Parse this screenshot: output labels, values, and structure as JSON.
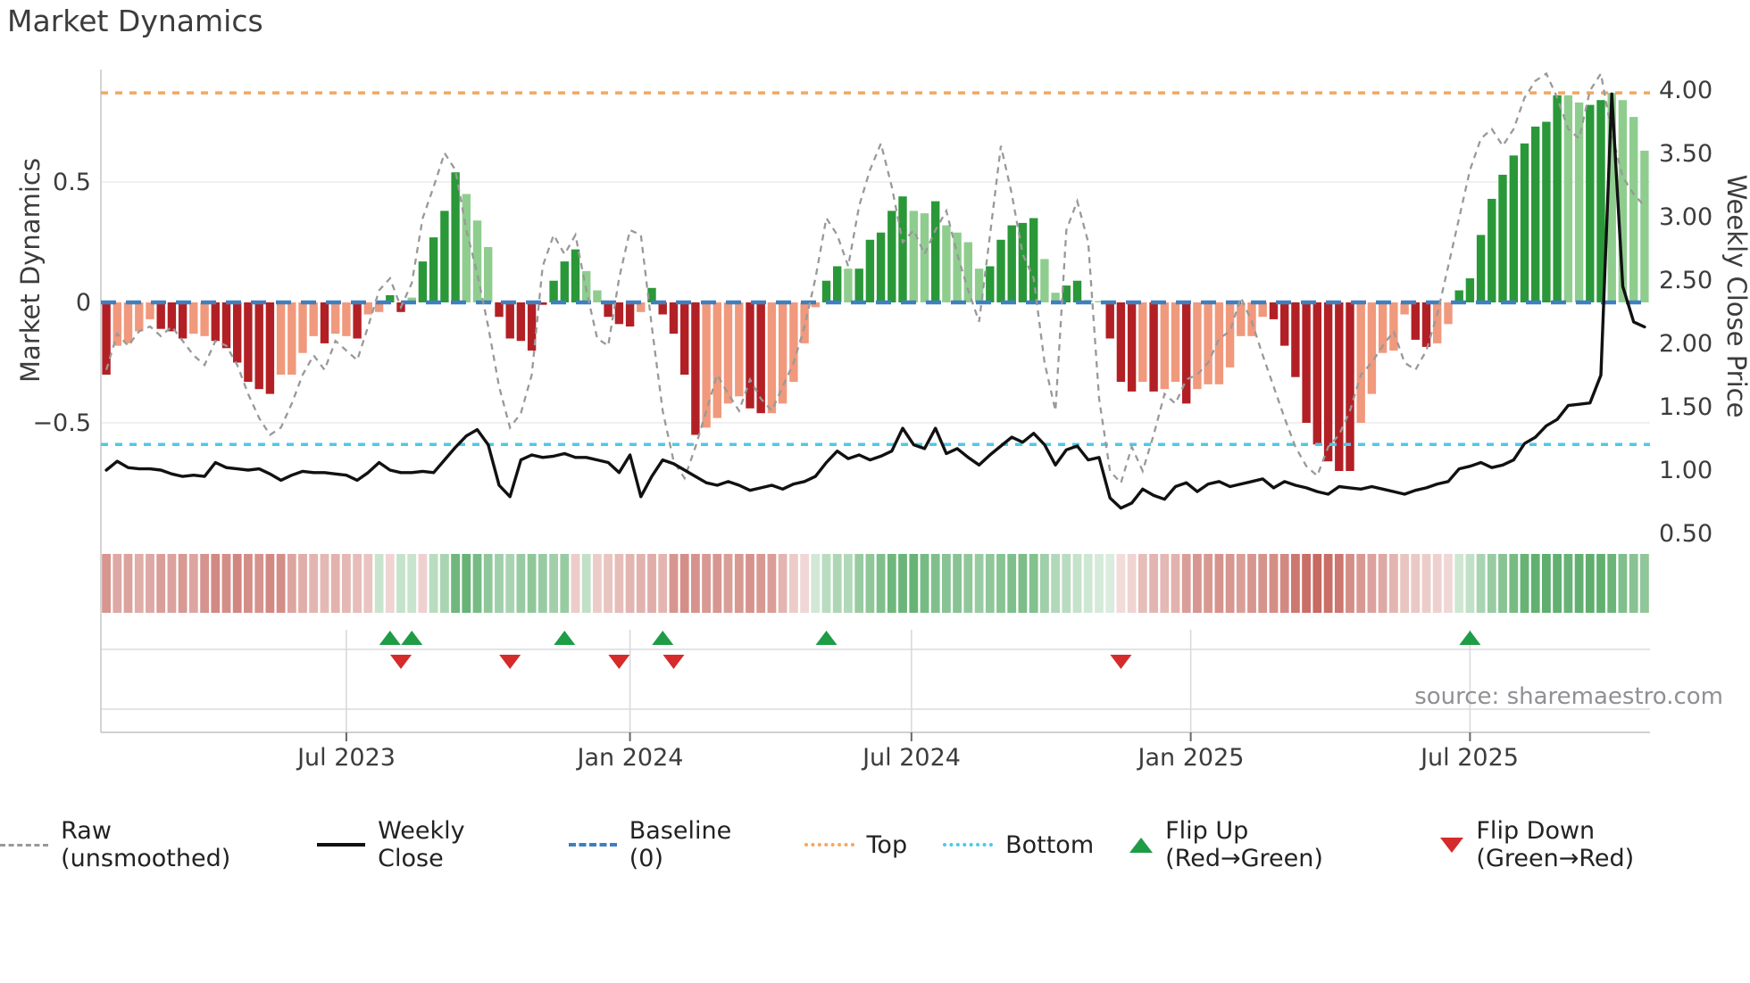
{
  "title": "Market Dynamics",
  "source": "source: sharemaestro.com",
  "axes": {
    "left_label": "Market Dynamics",
    "right_label": "Weekly Close Price",
    "left_ticks": [
      "0.5",
      "0",
      "−0.5"
    ],
    "right_ticks": [
      "4.00",
      "3.50",
      "3.00",
      "2.50",
      "2.00",
      "1.50",
      "1.00",
      "0.50"
    ],
    "x_ticks": [
      {
        "label": "Jul 2023",
        "week": 22.0
      },
      {
        "label": "Jan 2024",
        "week": 48.0
      },
      {
        "label": "Jul 2024",
        "week": 73.8
      },
      {
        "label": "Jan 2025",
        "week": 99.4
      },
      {
        "label": "Jul 2025",
        "week": 125.0
      }
    ]
  },
  "legend": {
    "items": [
      {
        "label": "Raw (unsmoothed)",
        "swatch": "raw-dashed-line"
      },
      {
        "label": "Weekly Close",
        "swatch": "solid-black-line"
      },
      {
        "label": "Baseline (0)",
        "swatch": "blue-dashed-line"
      },
      {
        "label": "Top",
        "swatch": "orange-dotted-line"
      },
      {
        "label": "Bottom",
        "swatch": "cyan-dotted-line"
      },
      {
        "label": "Flip Up (Red→Green)",
        "swatch": "green-up-triangle"
      },
      {
        "label": "Flip Down (Green→Red)",
        "swatch": "red-down-triangle"
      }
    ]
  },
  "chart_data": {
    "type": "bar",
    "subtype": "weekly oscillator bars + heatmap strip + dual-axis price lines",
    "n_points": 142,
    "x_range_weeks": [
      0,
      142
    ],
    "left_axis": {
      "label": "Market Dynamics",
      "ticks": [
        0.5,
        0,
        -0.5
      ],
      "top_line": 0.87,
      "bottom_line": -0.59,
      "baseline": 0
    },
    "right_axis": {
      "label": "Weekly Close Price",
      "ticks": [
        4.0,
        3.5,
        3.0,
        2.5,
        2.0,
        1.5,
        1.0,
        0.5
      ]
    },
    "oscillator": {
      "values": [
        -0.3,
        -0.18,
        -0.17,
        -0.12,
        -0.07,
        -0.11,
        -0.12,
        -0.15,
        -0.13,
        -0.14,
        -0.16,
        -0.19,
        -0.25,
        -0.33,
        -0.36,
        -0.38,
        -0.3,
        -0.3,
        -0.21,
        -0.14,
        -0.17,
        -0.13,
        -0.14,
        -0.15,
        -0.05,
        -0.04,
        0.03,
        -0.04,
        0.02,
        0.17,
        0.27,
        0.38,
        0.54,
        0.45,
        0.34,
        0.23,
        -0.06,
        -0.15,
        -0.16,
        -0.2,
        -0.01,
        0.09,
        0.17,
        0.22,
        0.13,
        0.05,
        -0.06,
        -0.09,
        -0.1,
        -0.04,
        0.06,
        -0.05,
        -0.13,
        -0.3,
        -0.55,
        -0.52,
        -0.48,
        -0.42,
        -0.39,
        -0.44,
        -0.46,
        -0.46,
        -0.42,
        -0.33,
        -0.17,
        -0.02,
        0.09,
        0.15,
        0.14,
        0.14,
        0.26,
        0.29,
        0.38,
        0.44,
        0.38,
        0.37,
        0.42,
        0.32,
        0.29,
        0.25,
        0.14,
        0.15,
        0.26,
        0.32,
        0.33,
        0.35,
        0.18,
        0.04,
        0.07,
        0.09,
        0.01,
        0.005,
        -0.15,
        -0.33,
        -0.37,
        -0.33,
        -0.37,
        -0.36,
        -0.33,
        -0.42,
        -0.36,
        -0.34,
        -0.34,
        -0.27,
        -0.14,
        -0.14,
        -0.06,
        -0.07,
        -0.18,
        -0.31,
        -0.5,
        -0.59,
        -0.66,
        -0.7,
        -0.7,
        -0.5,
        -0.38,
        -0.21,
        -0.2,
        -0.05,
        -0.155,
        -0.185,
        -0.17,
        -0.09,
        0.05,
        0.1,
        0.28,
        0.43,
        0.53,
        0.61,
        0.66,
        0.73,
        0.75,
        0.86,
        0.86,
        0.83,
        0.82,
        0.84,
        0.87,
        0.84,
        0.77,
        0.63
      ],
      "shade_flags": "dllllddddlldddddd ll l l d ll d ll dd l dddd lll ddddd ddd ll ddd l dd ddd llll dd lllll dd l ddddd ll d llll ddddd ll dd ll ddd l d ll d lllllll dddddddd lllll dd ll dddddddddd ll dd llll",
      "shades": "dlllldddlldddddd llll d ll d ll dd l dddd lll ddddd ddd ll ddd l dd ddd llll dd lllll dd l ddddd ll d llll ddddd ll dd ll ddd l d ll d lllllll dddddddd lllll dd ll dddddddddd ll dd llll"
    },
    "raw_series": [
      -0.28,
      -0.13,
      -0.18,
      -0.12,
      -0.1,
      -0.14,
      -0.1,
      -0.16,
      -0.22,
      -0.26,
      -0.16,
      -0.18,
      -0.26,
      -0.38,
      -0.48,
      -0.55,
      -0.52,
      -0.42,
      -0.3,
      -0.22,
      -0.28,
      -0.16,
      -0.2,
      -0.24,
      -0.1,
      0.05,
      0.1,
      -0.02,
      0.08,
      0.35,
      0.48,
      0.62,
      0.55,
      0.3,
      0.12,
      -0.1,
      -0.35,
      -0.52,
      -0.46,
      -0.3,
      0.15,
      0.28,
      0.2,
      0.28,
      0.05,
      -0.15,
      -0.18,
      0.1,
      0.3,
      0.28,
      -0.1,
      -0.45,
      -0.66,
      -0.73,
      -0.6,
      -0.45,
      -0.3,
      -0.38,
      -0.45,
      -0.32,
      -0.4,
      -0.45,
      -0.35,
      -0.25,
      -0.1,
      0.1,
      0.35,
      0.28,
      0.15,
      0.4,
      0.55,
      0.66,
      0.48,
      0.25,
      0.3,
      0.2,
      0.3,
      0.38,
      0.2,
      0.05,
      -0.08,
      0.28,
      0.65,
      0.45,
      0.2,
      0.1,
      -0.25,
      -0.45,
      0.3,
      0.42,
      0.25,
      -0.4,
      -0.7,
      -0.75,
      -0.6,
      -0.7,
      -0.55,
      -0.38,
      -0.42,
      -0.32,
      -0.3,
      -0.25,
      -0.15,
      -0.12,
      0.02,
      -0.08,
      -0.22,
      -0.35,
      -0.48,
      -0.6,
      -0.68,
      -0.72,
      -0.6,
      -0.55,
      -0.45,
      -0.3,
      -0.25,
      -0.18,
      -0.12,
      -0.25,
      -0.28,
      -0.2,
      -0.05,
      0.15,
      0.35,
      0.55,
      0.68,
      0.72,
      0.65,
      0.72,
      0.85,
      0.92,
      0.95,
      0.85,
      0.72,
      0.68,
      0.88,
      0.95,
      0.7,
      0.52,
      0.45,
      0.4
    ],
    "price_series": [
      1.0,
      1.07,
      1.02,
      1.01,
      1.01,
      1.0,
      0.97,
      0.95,
      0.96,
      0.95,
      1.06,
      1.02,
      1.01,
      1.0,
      1.01,
      0.97,
      0.92,
      0.96,
      0.99,
      0.98,
      0.98,
      0.97,
      0.96,
      0.92,
      0.98,
      1.06,
      1.0,
      0.98,
      0.98,
      0.99,
      0.98,
      1.08,
      1.18,
      1.27,
      1.32,
      1.2,
      0.88,
      0.79,
      1.08,
      1.12,
      1.1,
      1.11,
      1.13,
      1.1,
      1.1,
      1.08,
      1.06,
      0.98,
      1.12,
      0.79,
      0.95,
      1.08,
      1.05,
      1.0,
      0.95,
      0.9,
      0.88,
      0.91,
      0.88,
      0.84,
      0.86,
      0.88,
      0.85,
      0.89,
      0.91,
      0.95,
      1.06,
      1.15,
      1.09,
      1.12,
      1.08,
      1.11,
      1.15,
      1.33,
      1.2,
      1.17,
      1.33,
      1.13,
      1.17,
      1.1,
      1.04,
      1.12,
      1.19,
      1.26,
      1.22,
      1.29,
      1.2,
      1.04,
      1.16,
      1.19,
      1.08,
      1.1,
      0.78,
      0.7,
      0.74,
      0.85,
      0.8,
      0.77,
      0.87,
      0.9,
      0.83,
      0.89,
      0.91,
      0.87,
      0.89,
      0.91,
      0.93,
      0.86,
      0.91,
      0.88,
      0.86,
      0.83,
      0.81,
      0.87,
      0.86,
      0.85,
      0.87,
      0.85,
      0.83,
      0.81,
      0.84,
      0.86,
      0.89,
      0.91,
      1.01,
      1.03,
      1.06,
      1.02,
      1.04,
      1.08,
      1.21,
      1.26,
      1.35,
      1.4,
      1.51,
      1.52,
      1.53,
      1.75,
      3.97,
      2.45,
      2.17,
      2.13
    ],
    "heatmap": [
      -0.5,
      -0.38,
      -0.42,
      -0.35,
      -0.38,
      -0.45,
      -0.42,
      -0.48,
      -0.4,
      -0.52,
      -0.58,
      -0.55,
      -0.6,
      -0.55,
      -0.52,
      -0.58,
      -0.55,
      -0.4,
      -0.35,
      -0.3,
      -0.28,
      -0.32,
      -0.28,
      -0.25,
      -0.2,
      0.15,
      -0.1,
      0.18,
      0.15,
      -0.12,
      0.25,
      0.35,
      0.7,
      0.75,
      0.65,
      0.5,
      0.4,
      0.35,
      0.45,
      0.5,
      0.45,
      0.4,
      0.45,
      -0.15,
      0.2,
      -0.15,
      -0.2,
      -0.25,
      -0.3,
      -0.32,
      -0.35,
      -0.3,
      -0.5,
      -0.55,
      -0.52,
      -0.48,
      -0.5,
      -0.45,
      -0.48,
      -0.52,
      -0.48,
      -0.45,
      -0.3,
      -0.15,
      -0.08,
      0.1,
      0.25,
      0.32,
      0.3,
      0.45,
      0.5,
      0.6,
      0.7,
      0.72,
      0.75,
      0.65,
      0.6,
      0.55,
      0.55,
      0.5,
      0.45,
      0.5,
      0.55,
      0.6,
      0.62,
      0.58,
      0.4,
      0.3,
      0.25,
      0.18,
      0.12,
      0.08,
      0.05,
      -0.05,
      -0.1,
      -0.25,
      -0.3,
      -0.28,
      -0.32,
      -0.45,
      -0.5,
      -0.48,
      -0.52,
      -0.5,
      -0.45,
      -0.5,
      -0.52,
      -0.55,
      -0.58,
      -0.7,
      -0.75,
      -0.78,
      -0.75,
      -0.7,
      -0.55,
      -0.48,
      -0.42,
      -0.38,
      -0.3,
      -0.2,
      -0.18,
      -0.15,
      -0.12,
      -0.08,
      0.12,
      0.2,
      0.35,
      0.45,
      0.55,
      0.65,
      0.75,
      0.78,
      0.8,
      0.78,
      0.75,
      0.78,
      0.8,
      0.78,
      0.72,
      0.6,
      0.55,
      0.5
    ],
    "flip_up_weeks": [
      26,
      28,
      42,
      51,
      66,
      125
    ],
    "flip_down_weeks": [
      27,
      37,
      47,
      52,
      93
    ],
    "colors": {
      "bar_dark_green": "#2a9838",
      "bar_light_green": "#8fcd8f",
      "bar_dark_red": "#b22025",
      "bar_light_red": "#f0997d",
      "baseline": "#3f7fbf",
      "top_line": "#f2a860",
      "bottom_line": "#4ec9e6",
      "raw_line": "#999999",
      "price_line": "#111111",
      "flip_up": "#1e9c46",
      "flip_down": "#d62b2b",
      "heat_red": "#ba483e",
      "heat_green": "#3e9e50"
    },
    "grid": "horizontal at ±0.5, lower band rules, vertical at date ticks in marker band",
    "legend_position": "bottom center"
  }
}
